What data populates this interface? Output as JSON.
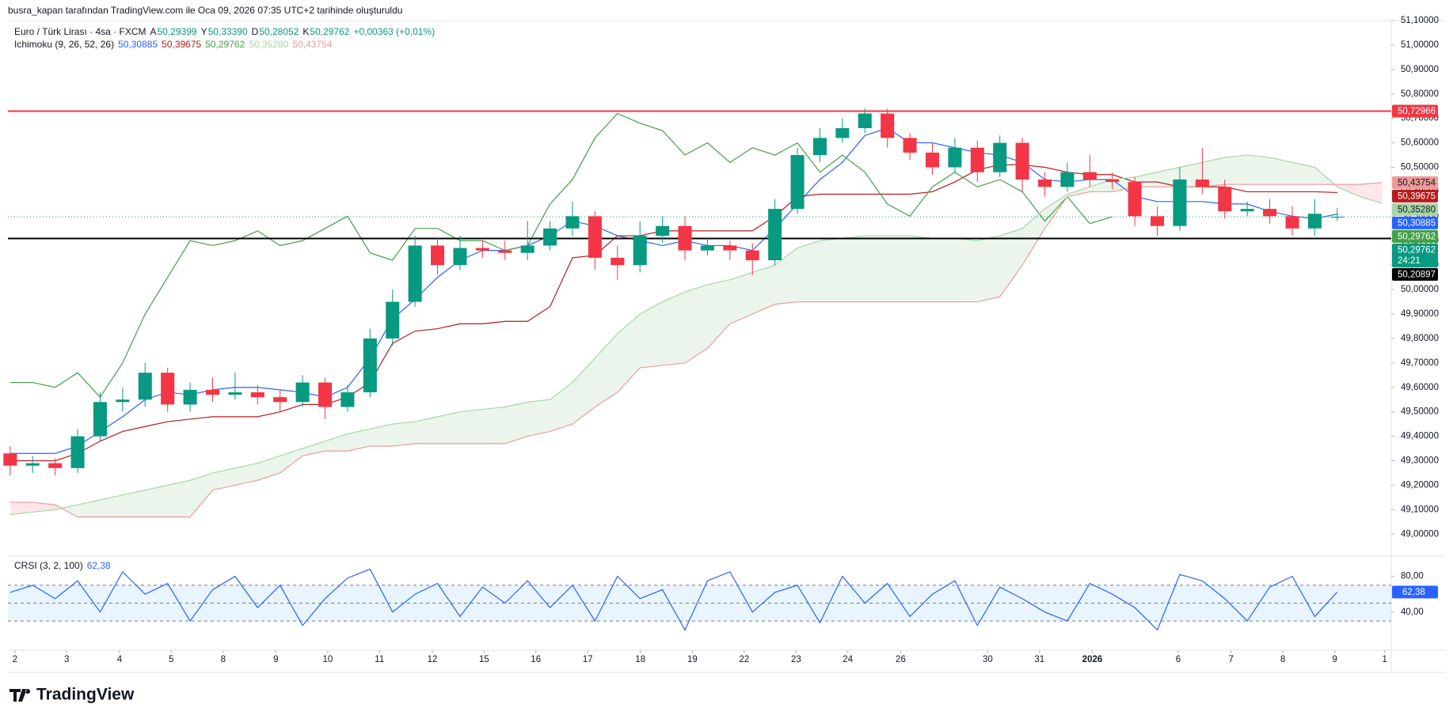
{
  "header": {
    "text": "busra_kapan tarafından TradingView.com ile Oca 09, 2026 07:35 UTC+2 tarihinde oluşturuldu"
  },
  "legend": {
    "symbol": "Euro / Türk Lirası · 4sa · FXCM",
    "ohlc": [
      {
        "key": "A",
        "value": "50,29399"
      },
      {
        "key": "Y",
        "value": "50,33390"
      },
      {
        "key": "D",
        "value": "50,28052"
      },
      {
        "key": "K",
        "value": "50,29762"
      }
    ],
    "change": "+0,00363 (+0,01%)",
    "indicator": "Ichimoku (9, 26, 52, 26)"
  },
  "brand": "TradingView",
  "chart_data": [
    {
      "type": "candlestick",
      "up_color": "#089981",
      "down_color": "#f23645",
      "open": [
        49.33,
        49.28,
        49.29,
        49.27,
        49.4,
        49.54,
        49.55,
        49.66,
        49.53,
        49.59,
        49.57,
        49.58,
        49.56,
        49.54,
        49.62,
        49.52,
        49.58,
        49.8,
        49.95,
        50.18,
        50.1,
        50.17,
        50.16,
        50.15,
        50.18,
        50.25,
        50.3,
        50.13,
        50.1,
        50.22,
        50.26,
        50.16,
        50.18,
        50.16,
        50.12,
        50.33,
        50.55,
        50.62,
        50.66,
        50.72,
        50.62,
        50.56,
        50.5,
        50.58,
        50.48,
        50.6,
        50.45,
        50.42,
        50.48,
        50.45,
        50.44,
        50.3,
        50.26,
        50.45,
        50.42,
        50.32,
        50.33,
        50.3,
        50.25,
        50.29399
      ],
      "high": [
        49.36,
        49.32,
        49.31,
        49.43,
        49.58,
        49.6,
        49.7,
        49.68,
        49.62,
        49.64,
        49.66,
        49.61,
        49.59,
        49.65,
        49.64,
        49.61,
        49.84,
        50.0,
        50.22,
        50.21,
        50.22,
        50.2,
        50.2,
        50.28,
        50.28,
        50.36,
        50.32,
        50.18,
        50.28,
        50.3,
        50.3,
        50.21,
        50.2,
        50.19,
        50.37,
        50.58,
        50.66,
        50.7,
        50.74,
        50.74,
        50.64,
        50.6,
        50.62,
        50.61,
        50.63,
        50.62,
        50.48,
        50.52,
        50.55,
        50.48,
        50.46,
        50.34,
        50.5,
        50.58,
        50.45,
        50.36,
        50.37,
        50.34,
        50.37,
        50.3339
      ],
      "low": [
        49.24,
        49.25,
        49.24,
        49.25,
        49.38,
        49.5,
        49.52,
        49.5,
        49.5,
        49.54,
        49.55,
        49.53,
        49.5,
        49.52,
        49.47,
        49.5,
        49.56,
        49.77,
        49.93,
        50.06,
        50.08,
        50.13,
        50.12,
        50.12,
        50.16,
        50.22,
        50.08,
        50.04,
        50.07,
        50.19,
        50.12,
        50.14,
        50.12,
        50.06,
        50.1,
        50.31,
        50.52,
        50.6,
        50.64,
        50.58,
        50.53,
        50.47,
        50.48,
        50.44,
        50.46,
        50.4,
        50.38,
        50.4,
        50.42,
        50.41,
        50.26,
        50.22,
        50.24,
        50.39,
        50.29,
        50.3,
        50.27,
        50.22,
        50.22,
        50.28052
      ],
      "close": [
        49.28,
        49.29,
        49.27,
        49.4,
        49.54,
        49.55,
        49.66,
        49.53,
        49.59,
        49.57,
        49.58,
        49.56,
        49.54,
        49.62,
        49.52,
        49.58,
        49.8,
        49.95,
        50.18,
        50.1,
        50.17,
        50.16,
        50.15,
        50.18,
        50.25,
        50.3,
        50.13,
        50.1,
        50.22,
        50.26,
        50.16,
        50.18,
        50.16,
        50.12,
        50.33,
        50.55,
        50.62,
        50.66,
        50.72,
        50.62,
        50.56,
        50.5,
        50.58,
        50.48,
        50.6,
        50.45,
        50.42,
        50.48,
        50.45,
        50.44,
        50.3,
        50.26,
        50.45,
        50.42,
        50.32,
        50.33,
        50.3,
        50.25,
        50.31,
        50.29762
      ],
      "last_label": "50,29762",
      "countdown": "24:21",
      "last_color": "#089981",
      "series": [
        {
          "color": "#2962ff",
          "last_label": "50,30885",
          "values": [
            49.33,
            49.33,
            49.33,
            49.36,
            49.42,
            49.48,
            49.55,
            49.58,
            49.57,
            49.59,
            49.6,
            49.6,
            49.59,
            49.58,
            49.56,
            49.6,
            49.72,
            49.88,
            49.96,
            50.05,
            50.12,
            50.16,
            50.16,
            50.18,
            50.22,
            50.28,
            50.26,
            50.22,
            50.2,
            50.18,
            50.2,
            50.18,
            50.18,
            50.16,
            50.25,
            50.35,
            50.45,
            50.52,
            50.63,
            50.66,
            50.6,
            50.6,
            50.58,
            50.56,
            50.55,
            50.52,
            50.45,
            50.44,
            50.45,
            50.45,
            50.38,
            50.36,
            50.36,
            50.36,
            50.35,
            50.35,
            50.32,
            50.3,
            50.29,
            50.30885
          ]
        },
        {
          "color": "#b71c1c",
          "last_label": "50,39675",
          "values": [
            49.3,
            49.3,
            49.3,
            49.33,
            49.38,
            49.42,
            49.44,
            49.46,
            49.47,
            49.48,
            49.48,
            49.48,
            49.5,
            49.53,
            49.53,
            49.56,
            49.62,
            49.78,
            49.83,
            49.84,
            49.86,
            49.86,
            49.87,
            49.87,
            49.93,
            50.13,
            50.14,
            50.22,
            50.22,
            50.24,
            50.24,
            50.24,
            50.24,
            50.24,
            50.3,
            50.38,
            50.39,
            50.39,
            50.39,
            50.39,
            50.39,
            50.4,
            50.44,
            50.49,
            50.51,
            50.51,
            50.5,
            50.48,
            50.47,
            50.47,
            50.44,
            50.44,
            50.42,
            50.42,
            50.42,
            50.4,
            50.4,
            50.4,
            50.4,
            50.39675
          ]
        },
        {
          "color": "#43a047",
          "last_label": "50,29762",
          "values": [
            49.62,
            49.62,
            49.6,
            49.66,
            49.56,
            49.7,
            49.9,
            50.05,
            50.2,
            50.18,
            50.2,
            50.24,
            50.18,
            50.2,
            50.25,
            50.3,
            50.15,
            50.12,
            50.25,
            50.25,
            50.2,
            50.2,
            50.16,
            50.18,
            50.35,
            50.45,
            50.62,
            50.72,
            50.68,
            50.65,
            50.55,
            50.6,
            50.52,
            50.58,
            50.55,
            50.6,
            50.48,
            50.55,
            50.48,
            50.35,
            50.3,
            50.42,
            50.48,
            50.42,
            50.45,
            50.4,
            50.28,
            50.38,
            50.27,
            50.29762
          ]
        },
        {
          "color": "#a5d6a7",
          "last_label": "50,35280",
          "values": [
            49.08,
            49.09,
            49.1,
            49.12,
            49.14,
            49.16,
            49.18,
            49.2,
            49.22,
            49.25,
            49.27,
            49.29,
            49.32,
            49.35,
            49.38,
            49.41,
            49.43,
            49.45,
            49.46,
            49.48,
            49.5,
            49.51,
            49.52,
            49.54,
            49.55,
            49.62,
            49.72,
            49.82,
            49.9,
            49.95,
            49.99,
            50.02,
            50.04,
            50.07,
            50.1,
            50.17,
            50.2,
            50.21,
            50.22,
            50.22,
            50.22,
            50.21,
            50.21,
            50.2,
            50.22,
            50.25,
            50.33,
            50.39,
            50.42,
            50.45,
            50.46,
            50.48,
            50.5,
            50.52,
            50.54,
            50.55,
            50.54,
            50.52,
            50.5,
            50.42,
            50.38,
            50.3528
          ]
        },
        {
          "color": "#ef9a9a",
          "last_label": "50,43754",
          "values": [
            49.13,
            49.13,
            49.12,
            49.07,
            49.07,
            49.07,
            49.07,
            49.07,
            49.07,
            49.18,
            49.2,
            49.22,
            49.25,
            49.32,
            49.34,
            49.34,
            49.36,
            49.36,
            49.37,
            49.37,
            49.37,
            49.37,
            49.37,
            49.4,
            49.42,
            49.45,
            49.52,
            49.58,
            49.68,
            49.69,
            49.7,
            49.76,
            49.86,
            49.9,
            49.94,
            49.95,
            49.95,
            49.95,
            49.95,
            49.95,
            49.95,
            49.95,
            49.95,
            49.95,
            49.97,
            50.1,
            50.25,
            50.38,
            50.4,
            50.4,
            50.42,
            50.42,
            50.42,
            50.42,
            50.43,
            50.43,
            50.43,
            50.43,
            50.43,
            50.43,
            50.43,
            50.43754
          ]
        }
      ],
      "cloud": {
        "up_color": "rgba(67,160,71,0.1)",
        "down_color": "rgba(242,54,69,0.12)"
      },
      "hlines": [
        {
          "value": 50.72966,
          "label": "50,72966",
          "color": "#f23645"
        },
        {
          "value": 50.20897,
          "label": "50,20897",
          "color": "#000000"
        }
      ],
      "xlim": [
        -0.1,
        61.4
      ],
      "xticks": [
        {
          "value": 0.21,
          "label": "2"
        },
        {
          "value": 2.51,
          "label": "3"
        },
        {
          "value": 4.86,
          "label": "4"
        },
        {
          "value": 7.16,
          "label": "5"
        },
        {
          "value": 9.47,
          "label": "8"
        },
        {
          "value": 11.81,
          "label": "9"
        },
        {
          "value": 14.12,
          "label": "10"
        },
        {
          "value": 16.42,
          "label": "11"
        },
        {
          "value": 18.77,
          "label": "12"
        },
        {
          "value": 21.07,
          "label": "15"
        },
        {
          "value": 23.37,
          "label": "16"
        },
        {
          "value": 25.68,
          "label": "17"
        },
        {
          "value": 28.02,
          "label": "18"
        },
        {
          "value": 30.33,
          "label": "19"
        },
        {
          "value": 32.63,
          "label": "22"
        },
        {
          "value": 34.94,
          "label": "23"
        },
        {
          "value": 37.24,
          "label": "24"
        },
        {
          "value": 39.59,
          "label": "26"
        },
        {
          "value": 43.46,
          "label": "30"
        },
        {
          "value": 45.76,
          "label": "31"
        },
        {
          "value": 48.11,
          "label": "2026"
        },
        {
          "value": 51.93,
          "label": "6"
        },
        {
          "value": 54.28,
          "label": "7"
        },
        {
          "value": 56.58,
          "label": "8"
        },
        {
          "value": 58.89,
          "label": "9"
        },
        {
          "value": 61.11,
          "label": "1"
        }
      ],
      "ylim": [
        48.92,
        51.1
      ],
      "yticks": [
        {
          "value": 49.0,
          "label": "49,00000"
        },
        {
          "value": 49.1,
          "label": "49,10000"
        },
        {
          "value": 49.2,
          "label": "49,20000"
        },
        {
          "value": 49.3,
          "label": "49,30000"
        },
        {
          "value": 49.4,
          "label": "49,40000"
        },
        {
          "value": 49.5,
          "label": "49,50000"
        },
        {
          "value": 49.6,
          "label": "49,60000"
        },
        {
          "value": 49.7,
          "label": "49,70000"
        },
        {
          "value": 49.8,
          "label": "49,80000"
        },
        {
          "value": 49.9,
          "label": "49,90000"
        },
        {
          "value": 50.0,
          "label": "50,00000"
        },
        {
          "value": 50.1,
          "label": "50,10000"
        },
        {
          "value": 50.2,
          "label": "50,20000"
        },
        {
          "value": 50.3,
          "label": "50,30000"
        },
        {
          "value": 50.4,
          "label": "50,40000"
        },
        {
          "value": 50.5,
          "label": "50,50000"
        },
        {
          "value": 50.6,
          "label": "50,60000"
        },
        {
          "value": 50.7,
          "label": "50,70000"
        },
        {
          "value": 50.8,
          "label": "50,80000"
        },
        {
          "value": 50.9,
          "label": "50,90000"
        },
        {
          "value": 51.0,
          "label": "51,00000"
        },
        {
          "value": 51.1,
          "label": "51,10000"
        }
      ]
    },
    {
      "type": "line",
      "title": "CRSI (3, 2, 100)",
      "last_label": "62,38",
      "color": "#2962ff",
      "band_color": "rgba(33,150,243,0.1)",
      "values": [
        62,
        70,
        55,
        75,
        40,
        85,
        60,
        72,
        30,
        65,
        80,
        45,
        70,
        25,
        55,
        78,
        88,
        40,
        60,
        72,
        35,
        68,
        50,
        75,
        45,
        70,
        30,
        80,
        55,
        65,
        20,
        75,
        85,
        40,
        62,
        70,
        28,
        80,
        50,
        72,
        35,
        60,
        75,
        25,
        68,
        55,
        40,
        30,
        72,
        60,
        45,
        20,
        82,
        75,
        55,
        30,
        68,
        80,
        35,
        62.38
      ],
      "levels": [
        70,
        50,
        30
      ],
      "ylim": [
        0,
        100
      ],
      "yticks": [
        {
          "value": 80,
          "label": "80,00"
        },
        {
          "value": 40,
          "label": "40,00"
        }
      ]
    }
  ]
}
